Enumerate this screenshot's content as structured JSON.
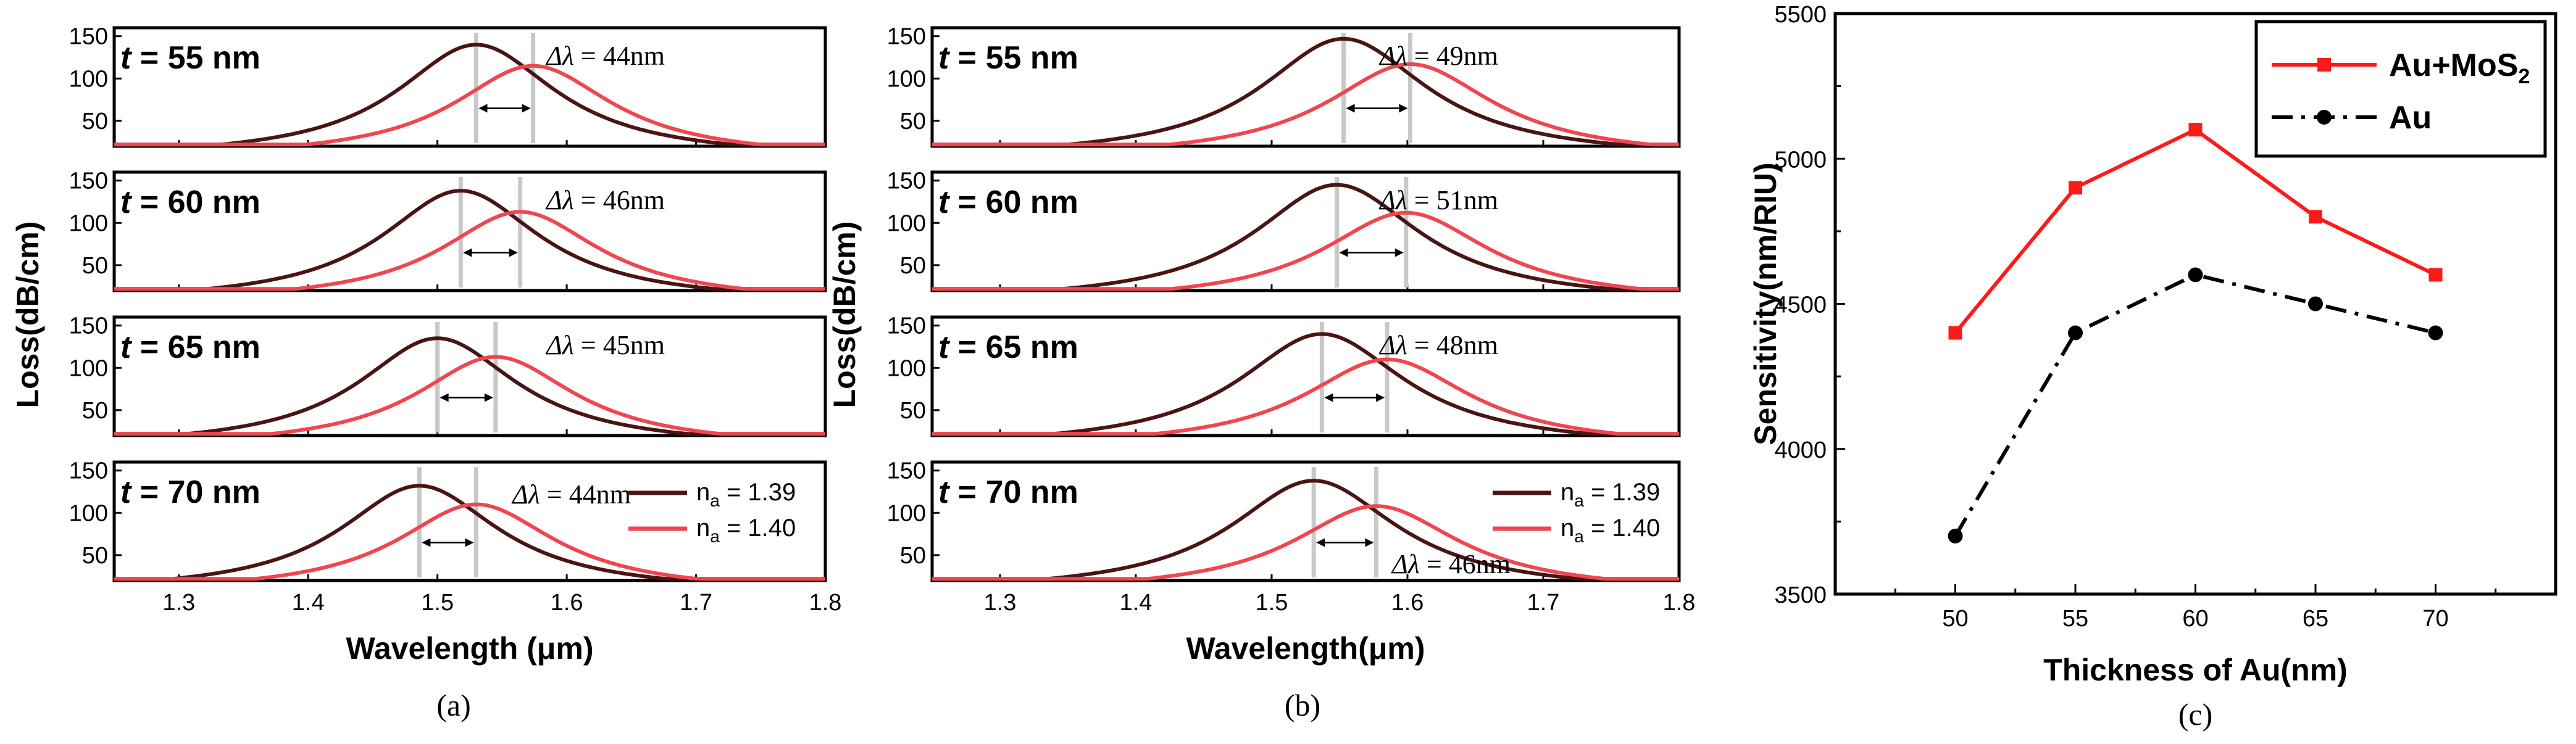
{
  "colors": {
    "na139": "#4a1414",
    "na140": "#f0464f",
    "black": "#000000",
    "red": "#ff1a1a",
    "marker": "#c8c8c8"
  },
  "chart_data": [
    {
      "type": "line",
      "id": "a",
      "caption": "(a)",
      "xlabel": "Wavelength (μm)",
      "ylabel": "Loss(dB/cm)",
      "xlim": [
        1.25,
        1.8
      ],
      "ylim": [
        20,
        160
      ],
      "xticks": [
        "1.3",
        "1.4",
        "1.5",
        "1.6",
        "1.7",
        "1.8"
      ],
      "yticks": [
        "50",
        "100",
        "150"
      ],
      "legend": [
        {
          "label": "n",
          "sub": "a",
          "value": " = 1.39"
        },
        {
          "label": "n",
          "sub": "a",
          "value": " = 1.40"
        }
      ],
      "subplots": [
        {
          "t_label": "t",
          "t_value": " = 55 nm",
          "delta_label": "Δλ",
          "delta_value": " = 44nm",
          "peak139": 1.53,
          "height139": 140,
          "peak140": 1.574,
          "height140": 115
        },
        {
          "t_label": "t",
          "t_value": " = 60 nm",
          "delta_label": "Δλ",
          "delta_value": " = 46nm",
          "peak139": 1.518,
          "height139": 138,
          "peak140": 1.564,
          "height140": 113
        },
        {
          "t_label": "t",
          "t_value": " = 65 nm",
          "delta_label": "Δλ",
          "delta_value": " = 45nm",
          "peak139": 1.5,
          "height139": 135,
          "peak140": 1.545,
          "height140": 113
        },
        {
          "t_label": "t",
          "t_value": " = 70 nm",
          "delta_label": "Δλ",
          "delta_value": " = 44nm",
          "peak139": 1.486,
          "height139": 132,
          "peak140": 1.53,
          "height140": 110
        }
      ]
    },
    {
      "type": "line",
      "id": "b",
      "caption": "(b)",
      "xlabel": "Wavelength(μm)",
      "ylabel": "Loss(dB/cm)",
      "xlim": [
        1.25,
        1.8
      ],
      "ylim": [
        20,
        160
      ],
      "xticks": [
        "1.3",
        "1.4",
        "1.5",
        "1.6",
        "1.7",
        "1.8"
      ],
      "yticks": [
        "50",
        "100",
        "150"
      ],
      "legend": [
        {
          "label": "n",
          "sub": "a",
          "value": " = 1.39"
        },
        {
          "label": "n",
          "sub": "a",
          "value": " = 1.40"
        }
      ],
      "subplots": [
        {
          "t_label": "t",
          "t_value": " = 55 nm",
          "delta_label": "Δλ",
          "delta_value": " = 49nm",
          "peak139": 1.553,
          "height139": 147,
          "peak140": 1.602,
          "height140": 117
        },
        {
          "t_label": "t",
          "t_value": " = 60 nm",
          "delta_label": "Δλ",
          "delta_value": " = 51nm",
          "peak139": 1.548,
          "height139": 145,
          "peak140": 1.599,
          "height140": 112
        },
        {
          "t_label": "t",
          "t_value": " = 65 nm",
          "delta_label": "Δλ",
          "delta_value": " = 48nm",
          "peak139": 1.537,
          "height139": 140,
          "peak140": 1.585,
          "height140": 110
        },
        {
          "t_label": "t",
          "t_value": " = 70 nm",
          "delta_label": "Δλ",
          "delta_value": " = 46nm",
          "peak139": 1.531,
          "height139": 138,
          "peak140": 1.577,
          "height140": 108
        }
      ]
    },
    {
      "type": "line",
      "id": "c",
      "caption": "(c)",
      "xlabel": "Thickness of Au(nm)",
      "ylabel": "Sensitivity(nm/RIU)",
      "x": [
        50,
        55,
        60,
        65,
        70
      ],
      "xlim": [
        45,
        75
      ],
      "ylim": [
        3500,
        5500
      ],
      "xticks": [
        "50",
        "55",
        "60",
        "65",
        "70"
      ],
      "yticks": [
        "3500",
        "4000",
        "4500",
        "5000",
        "5500"
      ],
      "series": [
        {
          "name": "Au+MoS",
          "name_sub": "2",
          "values": [
            4400,
            4900,
            5100,
            4800,
            4600
          ],
          "style": "solid",
          "marker": "square"
        },
        {
          "name": "Au",
          "values": [
            3700,
            4400,
            4600,
            4500,
            4400
          ],
          "style": "dash-dot",
          "marker": "circle"
        }
      ]
    }
  ]
}
